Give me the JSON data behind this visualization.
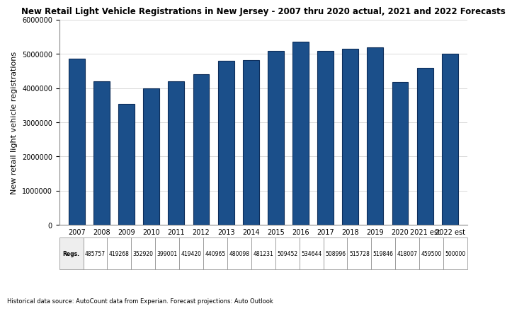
{
  "title": "New Retail Light Vehicle Registrations in New Jersey - 2007 thru 2020 actual, 2021 and 2022 Forecasts",
  "ylabel": "New retail light vehicle registrations",
  "source_note": "Historical data source: AutoCount data from Experian. Forecast projections: Auto Outlook",
  "categories": [
    "2007",
    "2008",
    "2009",
    "2010",
    "2011",
    "2012",
    "2013",
    "2014",
    "2015",
    "2016",
    "2017",
    "2018",
    "2019",
    "2020",
    "2021 est",
    "2022 est"
  ],
  "values": [
    4857570,
    4192680,
    3529200,
    3990010,
    4194200,
    4409650,
    4800980,
    4812310,
    5094520,
    5346440,
    5089960,
    5157280,
    5198460,
    4180070,
    4595000,
    5000000
  ],
  "table_values": [
    "485757",
    "419268",
    "352920",
    "399001",
    "419420",
    "440965",
    "480098",
    "481231",
    "509452",
    "534644",
    "508996",
    "515728",
    "519846",
    "418007",
    "459500",
    "500000"
  ],
  "bar_color": "#1B4F8A",
  "bar_edge_color": "#0D2D5A",
  "ylim": [
    0,
    6000000
  ],
  "yticks": [
    0,
    1000000,
    2000000,
    3000000,
    4000000,
    5000000,
    6000000
  ],
  "background_color": "#FFFFFF",
  "title_fontsize": 8.5,
  "ylabel_fontsize": 8,
  "tick_fontsize": 7,
  "table_row_label": "Regs.",
  "bar_width": 0.65
}
